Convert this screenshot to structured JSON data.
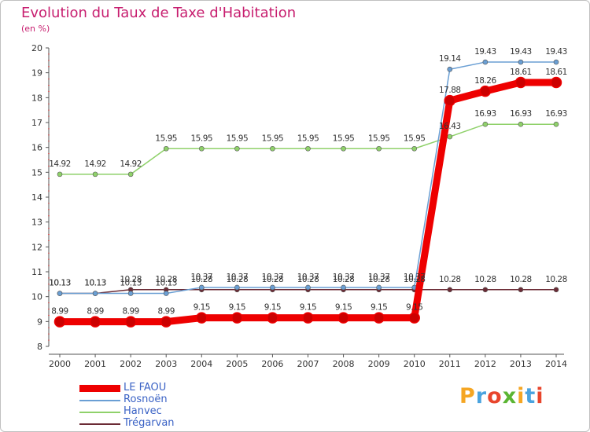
{
  "title": "Evolution du Taux de Taxe d'Habitation",
  "unit": "(en %)",
  "logo": {
    "text": "Proxiti",
    "colors": [
      "#f5a623",
      "#4aa3df",
      "#e8452c",
      "#5bb533",
      "#f5a623",
      "#4aa3df",
      "#e8452c"
    ]
  },
  "chart_data": {
    "type": "line",
    "x": [
      "2000",
      "2001",
      "2002",
      "2003",
      "2004",
      "2005",
      "2006",
      "2007",
      "2008",
      "2009",
      "2010",
      "2011",
      "2012",
      "2013",
      "2014"
    ],
    "ylim": [
      8,
      20
    ],
    "yticks": [
      "8",
      "9",
      "10",
      "11",
      "12",
      "13",
      "14",
      "15",
      "16",
      "17",
      "18",
      "19",
      "20"
    ],
    "grid": false,
    "legend_placement": "bottom-left",
    "series": [
      {
        "name": "LE FAOU",
        "color": "#ee0000",
        "values": [
          8.99,
          8.99,
          8.99,
          8.99,
          9.15,
          9.15,
          9.15,
          9.15,
          9.15,
          9.15,
          9.15,
          17.88,
          18.26,
          18.61,
          18.61
        ],
        "labels": [
          "8.99",
          "8.99",
          "8.99",
          "8.99",
          "9.15",
          "9.15",
          "9.15",
          "9.15",
          "9.15",
          "9.15",
          "9.15",
          "17.88",
          "18.26",
          "18.61",
          "18.61"
        ]
      },
      {
        "name": "Rosnoën",
        "color": "#6a9fd4",
        "values": [
          10.13,
          10.13,
          10.13,
          10.13,
          10.37,
          10.37,
          10.37,
          10.37,
          10.37,
          10.37,
          10.37,
          19.14,
          19.43,
          19.43,
          19.43
        ],
        "labels": [
          "10.13",
          "10.13",
          "10.13",
          "10.13",
          "10.37",
          "10.37",
          "10.37",
          "10.37",
          "10.37",
          "10.37",
          "10.37",
          "19.14",
          "19.43",
          "19.43",
          "19.43"
        ]
      },
      {
        "name": "Hanvec",
        "color": "#8fd16a",
        "values": [
          14.92,
          14.92,
          14.92,
          15.95,
          15.95,
          15.95,
          15.95,
          15.95,
          15.95,
          15.95,
          15.95,
          16.43,
          16.93,
          16.93,
          16.93
        ],
        "labels": [
          "14.92",
          "14.92",
          "14.92",
          "15.95",
          "15.95",
          "15.95",
          "15.95",
          "15.95",
          "15.95",
          "15.95",
          "15.95",
          "16.43",
          "16.93",
          "16.93",
          "16.93"
        ]
      },
      {
        "name": "Trégarvan",
        "color": "#6b2b35",
        "values": [
          10.13,
          10.13,
          10.28,
          10.28,
          10.28,
          10.28,
          10.28,
          10.28,
          10.28,
          10.28,
          10.28,
          10.28,
          10.28,
          10.28,
          10.28
        ],
        "labels": [
          "10.13",
          "10.13",
          "10.28",
          "10.28",
          "10.28",
          "10.28",
          "10.28",
          "10.28",
          "10.28",
          "10.28",
          "10.28",
          "10.28",
          "10.28",
          "10.28",
          "10.28"
        ]
      }
    ]
  }
}
